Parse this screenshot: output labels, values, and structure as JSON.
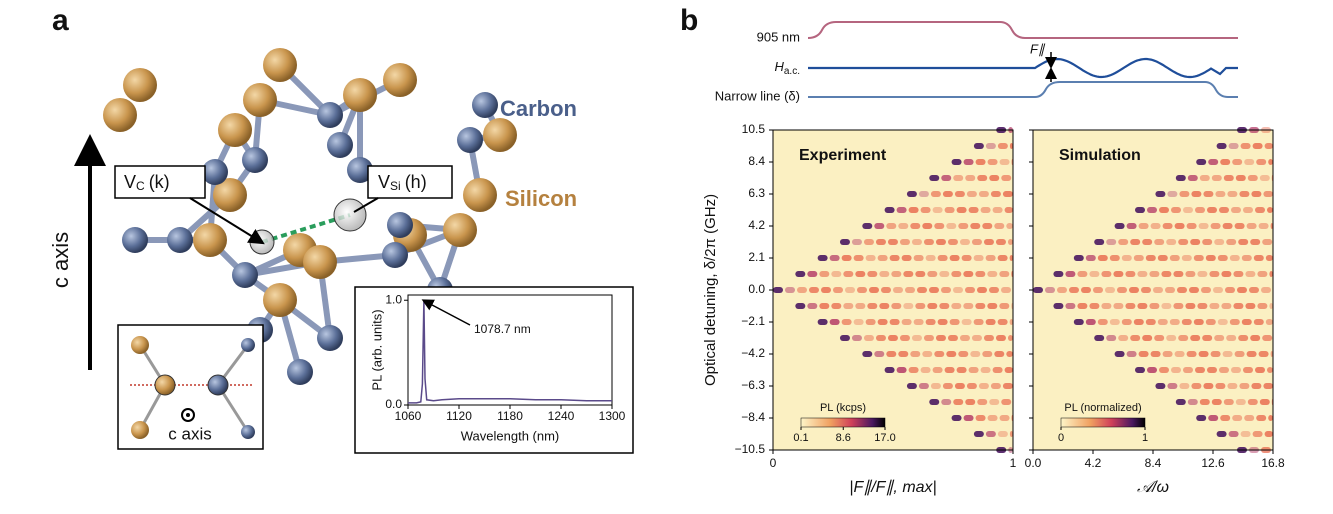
{
  "panel_a": {
    "label": "a",
    "carbon": "Carbon",
    "silicon": "Silicon",
    "axis_label": "c axis",
    "vacancy_c": {
      "symbol": "V",
      "sub": "C",
      "site": "(k)"
    },
    "vacancy_si": {
      "symbol": "V",
      "sub": "Si",
      "site": "(h)"
    },
    "inset_axis_label": "c axis"
  },
  "panel_b": {
    "label": "b",
    "trace_905": "905 nm",
    "trace_hac": {
      "symbol": "H",
      "sub": "a.c."
    },
    "trace_narrow": "Narrow line (δ)",
    "force_label": "F∥"
  },
  "chart_data": [
    {
      "type": "line",
      "xlabel": "Wavelength (nm)",
      "ylabel": "PL (arb. units)",
      "x": [
        1060,
        1070,
        1075,
        1077,
        1078.7,
        1080,
        1082,
        1090,
        1100,
        1120,
        1150,
        1180,
        1210,
        1240,
        1270,
        1300
      ],
      "values": [
        0.02,
        0.02,
        0.03,
        0.2,
        1.0,
        0.25,
        0.05,
        0.04,
        0.05,
        0.06,
        0.06,
        0.06,
        0.05,
        0.05,
        0.04,
        0.04
      ],
      "color": "#5a4a8a",
      "annotation": "1078.7 nm",
      "xlim": [
        1060,
        1300
      ],
      "xticks": [
        1060,
        1120,
        1180,
        1240,
        1300
      ],
      "ylim": [
        0,
        1.05
      ],
      "yticks": [
        {
          "value": 0,
          "label": "0.0"
        },
        {
          "value": 1,
          "label": "1.0"
        }
      ]
    },
    {
      "type": "heatmap",
      "title": "Experiment",
      "ylabel": "Optical detuning, δ/2π (GHz)",
      "xlabel": "|F∥/F∥, max|",
      "xlim": [
        0,
        1
      ],
      "xticks": [
        0,
        1
      ],
      "ylim": [
        -10.5,
        10.5
      ],
      "yticks": [
        10.5,
        8.4,
        6.3,
        4.2,
        2.1,
        {
          "value": 0,
          "label": "0.0"
        },
        {
          "value": -2.1,
          "label": "−2.1"
        },
        {
          "value": -4.2,
          "label": "−4.2"
        },
        {
          "value": -6.3,
          "label": "−6.3"
        },
        {
          "value": -8.4,
          "label": "−8.4"
        },
        {
          "value": -10.5,
          "label": "−10.5"
        }
      ],
      "colorbar": {
        "label": "PL (kcps)",
        "clim": [
          0.1,
          17
        ],
        "ticks": [
          0.1,
          8.6,
          {
            "value": 17,
            "label": "17.0"
          }
        ]
      }
    },
    {
      "type": "heatmap",
      "title": "Simulation",
      "xlabel": "𝒜/ω",
      "xlim": [
        0,
        16.8
      ],
      "xticks": [
        {
          "value": 0,
          "label": "0.0"
        },
        4.2,
        8.4,
        12.6,
        16.8
      ],
      "ylim": [
        -10.5,
        10.5
      ],
      "colorbar": {
        "label": "PL (normalized)",
        "clim": [
          0,
          1
        ],
        "ticks": [
          0,
          1
        ]
      }
    }
  ]
}
